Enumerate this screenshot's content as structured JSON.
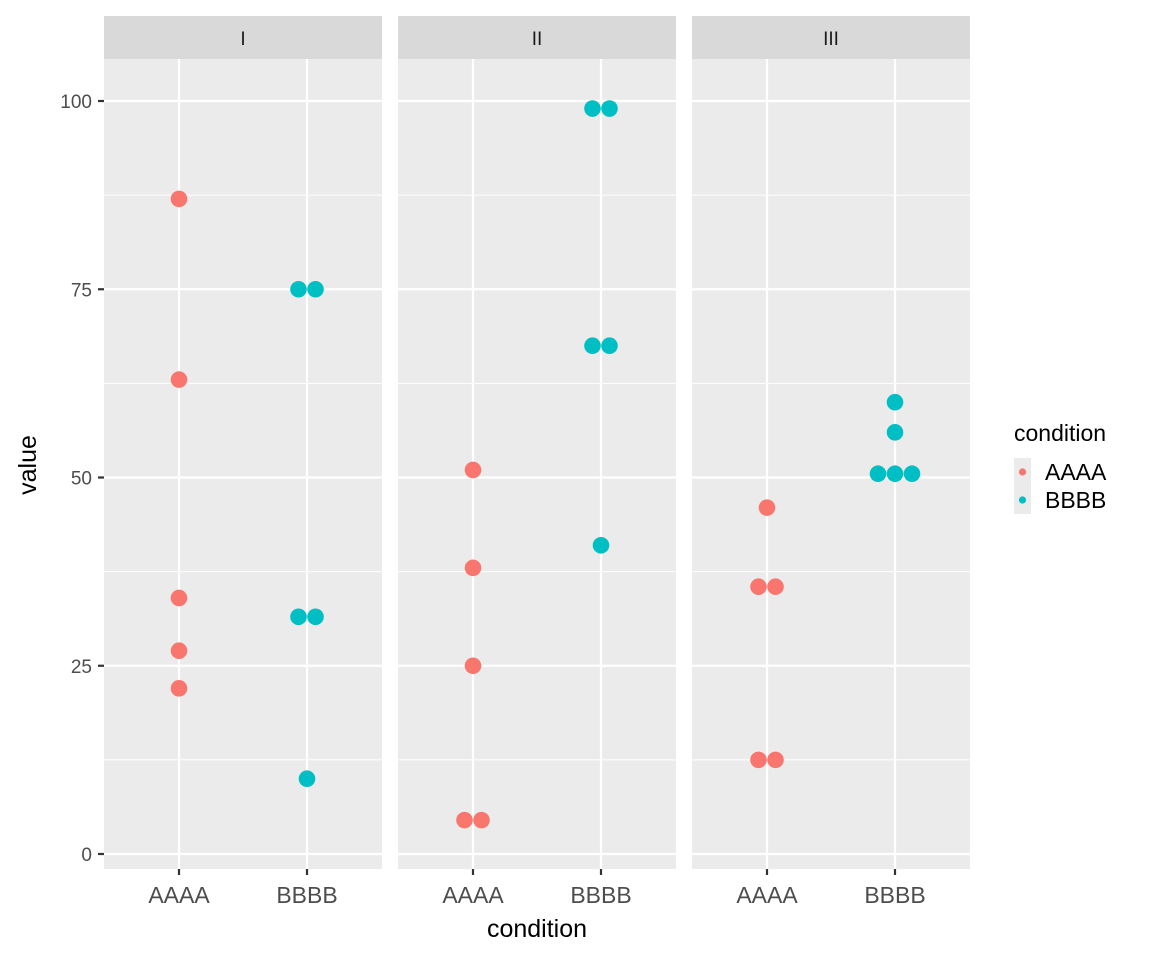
{
  "chart_data": {
    "type": "scatter",
    "subtype": "faceted dot plot",
    "xlabel": "condition",
    "ylabel": "value",
    "ylim": [
      -2,
      110
    ],
    "y_ticks": [
      0,
      25,
      50,
      75,
      100
    ],
    "categories": [
      "AAAA",
      "BBBB"
    ],
    "grid": true,
    "facets": [
      {
        "label": "I",
        "points": [
          {
            "condition": "AAAA",
            "values": [
              87,
              63,
              34,
              27,
              22
            ]
          },
          {
            "condition": "BBBB",
            "values": [
              75,
              75,
              31.5,
              31.5,
              10
            ]
          }
        ]
      },
      {
        "label": "II",
        "points": [
          {
            "condition": "AAAA",
            "values": [
              51,
              38,
              25,
              4.5,
              4.5
            ]
          },
          {
            "condition": "BBBB",
            "values": [
              99,
              99,
              67.5,
              67.5,
              41
            ]
          }
        ]
      },
      {
        "label": "III",
        "points": [
          {
            "condition": "AAAA",
            "values": [
              46,
              35.5,
              35.5,
              12.5,
              12.5
            ]
          },
          {
            "condition": "BBBB",
            "values": [
              60,
              56,
              50.5,
              50.5,
              50.5
            ]
          }
        ]
      }
    ],
    "legend": {
      "title": "condition",
      "placement": "right",
      "entries": [
        {
          "label": "AAAA",
          "color": "#F8766D"
        },
        {
          "label": "BBBB",
          "color": "#00BFC4"
        }
      ]
    }
  }
}
